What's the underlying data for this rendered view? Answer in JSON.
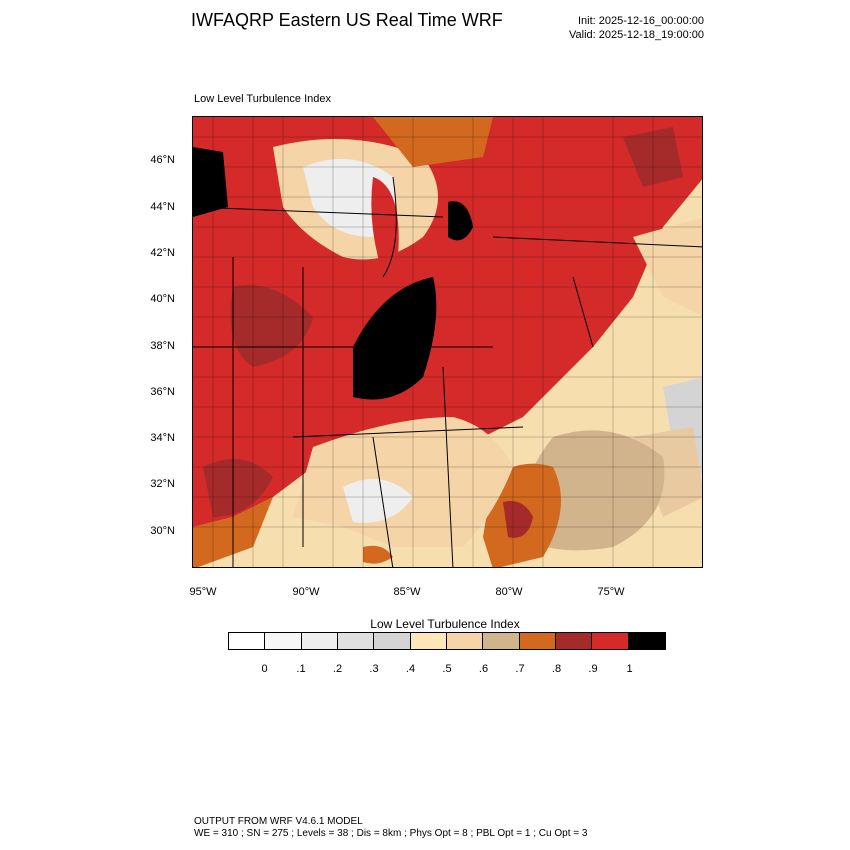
{
  "title": "IWFAQRP Eastern US Real Time WRF",
  "init": "Init: 2025-12-16_00:00:00",
  "valid": "Valid: 2025-12-18_19:00:00",
  "panel_label": "Low Level Turbulence Index",
  "lat_labels": [
    "46°N",
    "44°N",
    "42°N",
    "40°N",
    "38°N",
    "36°N",
    "34°N",
    "32°N",
    "30°N"
  ],
  "lon_labels": [
    "95°W",
    "90°W",
    "85°W",
    "80°W",
    "75°W"
  ],
  "colorbar": {
    "title": "Low Level Turbulence Index",
    "colors": [
      "#ffffff",
      "#f7f7f7",
      "#eeeeee",
      "#e0e0e0",
      "#d4d4d4",
      "#fde6b8",
      "#f5d5a8",
      "#d2b48c",
      "#d2691e",
      "#a52a2a",
      "#d42a2a",
      "#000000"
    ],
    "ticks": [
      "0",
      ".1",
      ".2",
      ".3",
      ".4",
      ".5",
      ".6",
      ".7",
      ".8",
      ".9",
      "1"
    ]
  },
  "footer": {
    "line1": "OUTPUT FROM WRF V4.6.1 MODEL",
    "line2": "WE = 310 ; SN = 275 ; Levels = 38 ; Dis = 8km ; Phys Opt = 8 ; PBL Opt = 1 ; Cu Opt = 3"
  }
}
